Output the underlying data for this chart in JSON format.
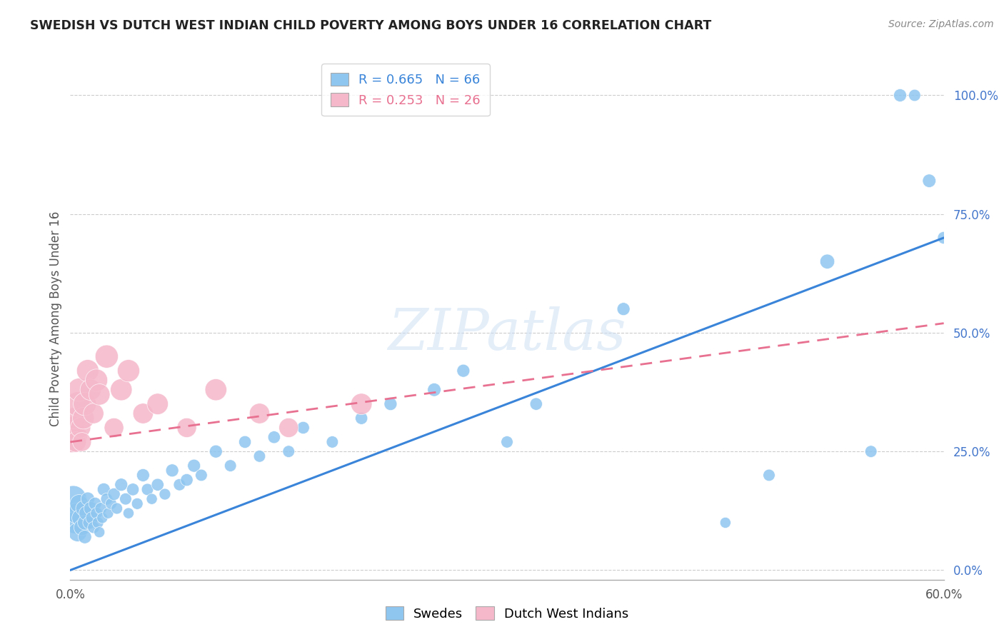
{
  "title": "SWEDISH VS DUTCH WEST INDIAN CHILD POVERTY AMONG BOYS UNDER 16 CORRELATION CHART",
  "source": "Source: ZipAtlas.com",
  "ylabel": "Child Poverty Among Boys Under 16",
  "ytick_labels": [
    "0.0%",
    "25.0%",
    "50.0%",
    "75.0%",
    "100.0%"
  ],
  "ytick_values": [
    0.0,
    0.25,
    0.5,
    0.75,
    1.0
  ],
  "xlim": [
    0.0,
    0.6
  ],
  "ylim": [
    -0.02,
    1.08
  ],
  "blue_R": 0.665,
  "blue_N": 66,
  "pink_R": 0.253,
  "pink_N": 26,
  "background_color": "#ffffff",
  "watermark": "ZIPatlas",
  "blue_color": "#8ec6f0",
  "pink_color": "#f5b8cb",
  "blue_line_color": "#3a85d9",
  "pink_line_color": "#e87090",
  "grid_color": "#cccccc",
  "title_color": "#222222",
  "swedes_x": [
    0.002,
    0.003,
    0.004,
    0.005,
    0.006,
    0.007,
    0.008,
    0.009,
    0.01,
    0.01,
    0.011,
    0.012,
    0.013,
    0.014,
    0.015,
    0.016,
    0.017,
    0.018,
    0.019,
    0.02,
    0.021,
    0.022,
    0.023,
    0.025,
    0.026,
    0.028,
    0.03,
    0.032,
    0.035,
    0.038,
    0.04,
    0.043,
    0.046,
    0.05,
    0.053,
    0.056,
    0.06,
    0.065,
    0.07,
    0.075,
    0.08,
    0.085,
    0.09,
    0.1,
    0.11,
    0.12,
    0.13,
    0.14,
    0.15,
    0.16,
    0.18,
    0.2,
    0.22,
    0.25,
    0.27,
    0.3,
    0.32,
    0.38,
    0.45,
    0.48,
    0.52,
    0.55,
    0.57,
    0.58,
    0.59,
    0.6
  ],
  "swedes_y": [
    0.15,
    0.1,
    0.12,
    0.08,
    0.14,
    0.11,
    0.09,
    0.13,
    0.1,
    0.07,
    0.12,
    0.15,
    0.1,
    0.13,
    0.11,
    0.09,
    0.14,
    0.12,
    0.1,
    0.08,
    0.13,
    0.11,
    0.17,
    0.15,
    0.12,
    0.14,
    0.16,
    0.13,
    0.18,
    0.15,
    0.12,
    0.17,
    0.14,
    0.2,
    0.17,
    0.15,
    0.18,
    0.16,
    0.21,
    0.18,
    0.19,
    0.22,
    0.2,
    0.25,
    0.22,
    0.27,
    0.24,
    0.28,
    0.25,
    0.3,
    0.27,
    0.32,
    0.35,
    0.38,
    0.42,
    0.27,
    0.35,
    0.55,
    0.1,
    0.2,
    0.65,
    0.25,
    1.0,
    1.0,
    0.82,
    0.7
  ],
  "swedes_size": [
    60,
    40,
    35,
    30,
    28,
    25,
    22,
    20,
    18,
    15,
    18,
    16,
    14,
    16,
    14,
    12,
    14,
    12,
    11,
    10,
    12,
    10,
    14,
    12,
    10,
    11,
    13,
    11,
    14,
    12,
    10,
    13,
    11,
    14,
    12,
    10,
    13,
    11,
    14,
    12,
    13,
    14,
    12,
    14,
    12,
    13,
    12,
    13,
    12,
    13,
    12,
    13,
    14,
    15,
    14,
    12,
    13,
    14,
    10,
    12,
    18,
    12,
    14,
    12,
    15,
    13
  ],
  "dutch_x": [
    0.001,
    0.002,
    0.003,
    0.004,
    0.005,
    0.006,
    0.007,
    0.008,
    0.009,
    0.01,
    0.012,
    0.014,
    0.016,
    0.018,
    0.02,
    0.025,
    0.03,
    0.035,
    0.04,
    0.05,
    0.06,
    0.08,
    0.1,
    0.13,
    0.15,
    0.2
  ],
  "dutch_y": [
    0.28,
    0.3,
    0.32,
    0.27,
    0.35,
    0.38,
    0.3,
    0.27,
    0.32,
    0.35,
    0.42,
    0.38,
    0.33,
    0.4,
    0.37,
    0.45,
    0.3,
    0.38,
    0.42,
    0.33,
    0.35,
    0.3,
    0.38,
    0.33,
    0.3,
    0.35
  ],
  "dutch_size": [
    80,
    45,
    40,
    35,
    50,
    45,
    35,
    30,
    40,
    45,
    42,
    38,
    35,
    42,
    38,
    45,
    32,
    40,
    42,
    35,
    38,
    32,
    40,
    35,
    32,
    38
  ],
  "blue_line_x0": 0.0,
  "blue_line_y0": 0.0,
  "blue_line_x1": 0.6,
  "blue_line_y1": 0.7,
  "pink_line_x0": 0.0,
  "pink_line_y0": 0.27,
  "pink_line_x1": 0.6,
  "pink_line_y1": 0.52
}
